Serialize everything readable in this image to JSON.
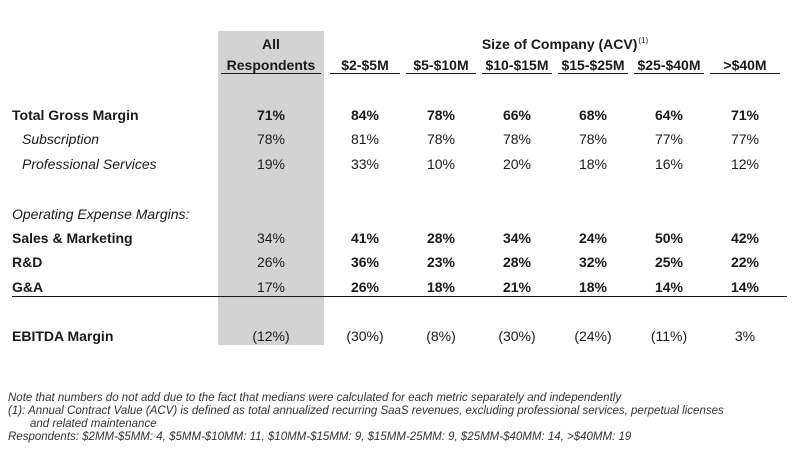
{
  "header": {
    "all_line1": "All",
    "all_line2": "Respondents",
    "size_title": "Size of Company (ACV)",
    "size_title_sup": "(1)",
    "columns": [
      "$2-$5M",
      "$5-$10M",
      "$10-$15M",
      "$15-$25M",
      "$25-$40M",
      ">$40M"
    ]
  },
  "rows": [
    {
      "label": "Total Gross Margin",
      "all": "71%",
      "values": [
        "84%",
        "78%",
        "66%",
        "68%",
        "64%",
        "71%"
      ]
    },
    {
      "label": "Subscription",
      "all": "78%",
      "values": [
        "81%",
        "78%",
        "78%",
        "78%",
        "77%",
        "77%"
      ]
    },
    {
      "label": "Professional Services",
      "all": "19%",
      "values": [
        "33%",
        "10%",
        "20%",
        "18%",
        "16%",
        "12%"
      ]
    },
    {
      "label": "Operating Expense Margins:"
    },
    {
      "label": "Sales & Marketing",
      "all": "34%",
      "values": [
        "41%",
        "28%",
        "34%",
        "24%",
        "50%",
        "42%"
      ]
    },
    {
      "label": "R&D",
      "all": "26%",
      "values": [
        "36%",
        "23%",
        "28%",
        "32%",
        "25%",
        "22%"
      ]
    },
    {
      "label": "G&A",
      "all": "17%",
      "values": [
        "26%",
        "18%",
        "21%",
        "18%",
        "14%",
        "14%"
      ]
    },
    {
      "label": "EBITDA Margin",
      "all": "(12%)",
      "values": [
        "(30%)",
        "(8%)",
        "(30%)",
        "(24%)",
        "(11%)",
        "3%"
      ]
    }
  ],
  "notes": {
    "line1": "Note that numbers do not add due to the fact that medians were calculated for each metric separately and independently",
    "line2": "(1): Annual Contract Value (ACV) is defined as total annualized recurring SaaS revenues, excluding professional services, perpetual licenses",
    "line3": "and related maintenance",
    "line4": "Respondents: $2MM-$5MM: 4, $5MM-$10MM: 11, $10MM-$15MM: 9, $15MM-25MM: 9, $25MM-$40MM: 14, >$40MM: 19"
  }
}
